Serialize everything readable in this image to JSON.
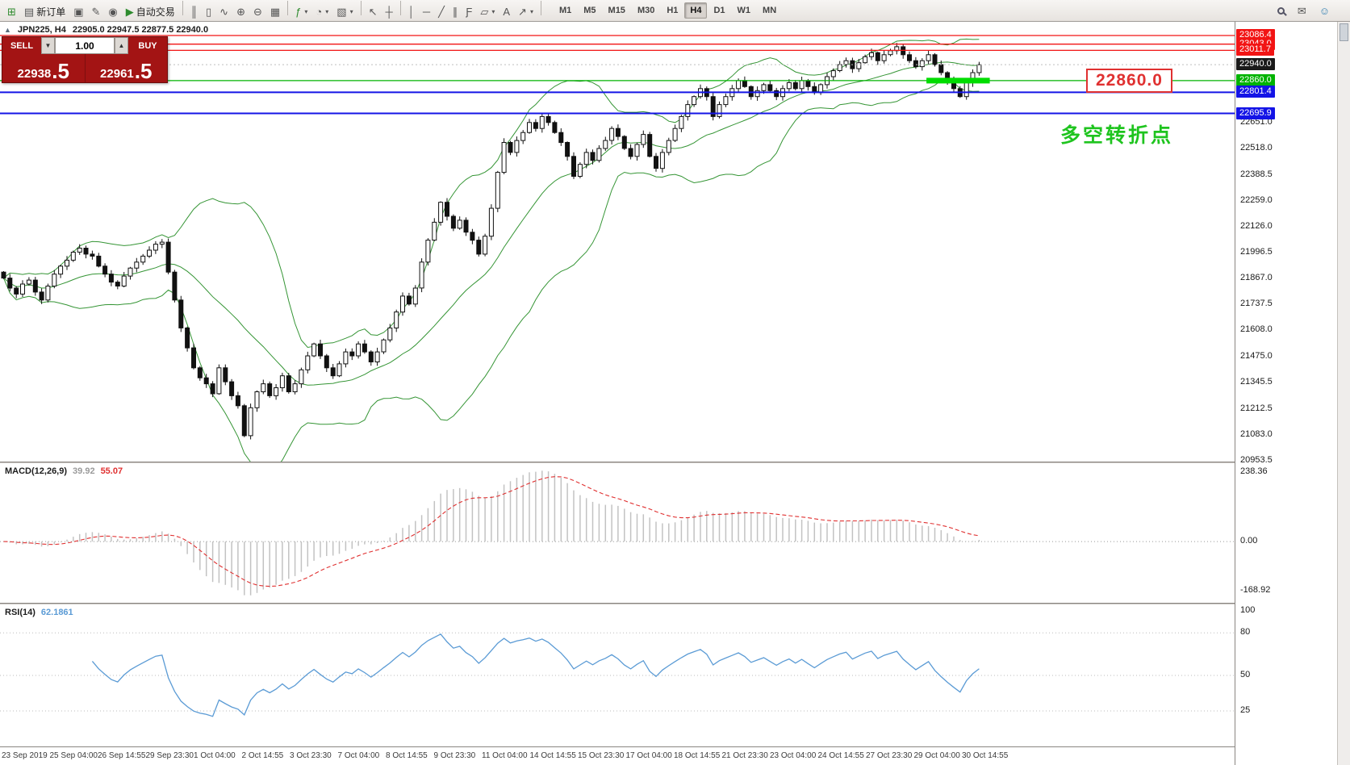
{
  "toolbar": {
    "caret_glyph": "▾",
    "items": [
      {
        "name": "new-chart",
        "glyph": "⊞",
        "color": "#2e8b2e"
      },
      {
        "name": "new-order",
        "glyph": "▤",
        "label": "新订单"
      },
      {
        "name": "chart-profiles",
        "glyph": "▣"
      },
      {
        "name": "metaeditor",
        "glyph": "✎"
      },
      {
        "name": "alerts",
        "glyph": "◉"
      },
      {
        "name": "autotrading",
        "glyph": "▶",
        "label": "自动交易",
        "color": "#2e8b2e"
      },
      {
        "sep": true
      },
      {
        "name": "bar-chart",
        "glyph": "║"
      },
      {
        "name": "candlestick-chart",
        "glyph": "▯"
      },
      {
        "name": "line-chart",
        "glyph": "∿"
      },
      {
        "name": "zoom-in",
        "glyph": "⊕"
      },
      {
        "name": "zoom-out",
        "glyph": "⊖"
      },
      {
        "name": "tile-windows",
        "glyph": "▦"
      },
      {
        "sep": true
      },
      {
        "name": "indicators",
        "glyph": "ƒ",
        "color": "#2e8b2e",
        "caret": true
      },
      {
        "name": "periods",
        "glyph": "◔",
        "caret": true
      },
      {
        "name": "templates",
        "glyph": "▧",
        "caret": true
      },
      {
        "sep": true
      },
      {
        "name": "cursor",
        "glyph": "↖"
      },
      {
        "name": "crosshair",
        "glyph": "┼"
      },
      {
        "sep": true
      },
      {
        "name": "vertical-line",
        "glyph": "│"
      },
      {
        "name": "horizontal-line",
        "glyph": "─"
      },
      {
        "name": "trendline",
        "glyph": "╱"
      },
      {
        "name": "equidistant-channel",
        "glyph": "∥"
      },
      {
        "name": "fibonacci",
        "glyph": "Ƒ"
      },
      {
        "name": "shapes",
        "glyph": "▱",
        "caret": true
      },
      {
        "name": "text-label",
        "glyph": "A"
      },
      {
        "name": "arrow-objects",
        "glyph": "↗",
        "caret": true
      },
      {
        "sep": true
      }
    ],
    "timeframes": [
      {
        "label": "M1"
      },
      {
        "label": "M5"
      },
      {
        "label": "M15"
      },
      {
        "label": "M30"
      },
      {
        "label": "H1"
      },
      {
        "label": "H4",
        "active": true
      },
      {
        "label": "D1"
      },
      {
        "label": "W1"
      },
      {
        "label": "MN"
      }
    ],
    "right_icons": [
      {
        "name": "search",
        "css": "magnifier"
      },
      {
        "name": "mail",
        "glyph": "✉"
      },
      {
        "name": "community",
        "glyph": "☺",
        "color": "#2e7db0"
      }
    ]
  },
  "chart_header": {
    "toggle_icon": "▲",
    "symbol_period": "JPN225, H4",
    "ohlc": "22905.0 22947.5 22877.5 22940.0"
  },
  "one_click": {
    "sell_label": "SELL",
    "buy_label": "BUY",
    "volume": "1.00",
    "vol_down_glyph": "▼",
    "vol_up_glyph": "▲",
    "sell_price_main": "22938",
    "sell_price_big": ".5",
    "buy_price_main": "22961",
    "buy_price_big": ".5"
  },
  "annotations": {
    "price_box_label": "22860.0",
    "price_box_color": "#e03131",
    "note_text": "多空转折点",
    "note_color": "#1fc41f",
    "highlight_from_candle": 146,
    "highlight_to_candle": 156,
    "highlight_value": 22860,
    "highlight_color": "#00dd00"
  },
  "levels": [
    {
      "value": 23086.4,
      "label": "23086.4",
      "color": "#f21414",
      "line": true
    },
    {
      "value": 23043.0,
      "label": "23043.0",
      "color": "#f21414",
      "line": true
    },
    {
      "value": 23011.7,
      "label": "23011.7",
      "color": "#f21414",
      "line": true
    },
    {
      "value": 22940.0,
      "label": "22940.0",
      "color": "#1a1a1a",
      "line": false,
      "dashed": true
    },
    {
      "value": 22860.0,
      "label": "22860.0",
      "color": "#00b300",
      "line": true
    },
    {
      "value": 22801.4,
      "label": "22801.4",
      "color": "#1414e6",
      "line": true,
      "thick": true
    },
    {
      "value": 22695.9,
      "label": "22695.9",
      "color": "#1414e6",
      "line": true,
      "thick": true
    }
  ],
  "price_ticks": [
    "22651.0",
    "22518.0",
    "22388.5",
    "22259.0",
    "22126.0",
    "21996.5",
    "21867.0",
    "21737.5",
    "21608.0",
    "21475.0",
    "21345.5",
    "21212.5",
    "21083.0",
    "20953.5"
  ],
  "time_labels": [
    "23 Sep 2019",
    "25 Sep 04:00",
    "26 Sep 14:55",
    "29 Sep 23:30",
    "1 Oct 04:00",
    "2 Oct 14:55",
    "3 Oct 23:30",
    "7 Oct 04:00",
    "8 Oct 14:55",
    "9 Oct 23:30",
    "11 Oct 04:00",
    "14 Oct 14:55",
    "15 Oct 23:30",
    "17 Oct 04:00",
    "18 Oct 14:55",
    "21 Oct 23:30",
    "23 Oct 04:00",
    "24 Oct 14:55",
    "27 Oct 23:30",
    "29 Oct 04:00",
    "30 Oct 14:55"
  ],
  "macd_panel": {
    "name": "MACD(12,26,9)",
    "value_main": "39.92",
    "value_signal": "55.07",
    "axis_labels": [
      "238.36",
      "0.00",
      "-168.92"
    ]
  },
  "rsi_panel": {
    "name": "RSI(14)",
    "value": "62.1861",
    "axis_labels": [
      "100",
      "80",
      "50",
      "25"
    ],
    "levels": [
      80,
      50,
      25
    ]
  },
  "chart_data": {
    "type": "candlestick",
    "symbol": "JPN225",
    "period": "H4",
    "ohlc_line": {
      "open": "22905.0",
      "high": "22947.5",
      "low": "22877.5",
      "close": "22940.0"
    },
    "visible_range_prices": [
      20950,
      23155
    ],
    "indicators": [
      {
        "name": "Bollinger Bands",
        "color": "#359535"
      },
      {
        "name": "MACD(12,26,9)",
        "histogram_color": "#c2c2c2",
        "signal_color": "#e03131"
      },
      {
        "name": "RSI(14)",
        "color": "#5b9bd5"
      }
    ],
    "closes": [
      21870,
      21820,
      21790,
      21840,
      21860,
      21800,
      21760,
      21830,
      21890,
      21930,
      21960,
      22000,
      22020,
      21990,
      21980,
      21930,
      21890,
      21850,
      21830,
      21880,
      21920,
      21950,
      21980,
      22010,
      22040,
      22050,
      21900,
      21760,
      21620,
      21520,
      21420,
      21370,
      21340,
      21290,
      21420,
      21350,
      21280,
      21230,
      21080,
      21220,
      21300,
      21340,
      21280,
      21320,
      21380,
      21300,
      21340,
      21410,
      21480,
      21540,
      21480,
      21420,
      21380,
      21440,
      21500,
      21480,
      21540,
      21500,
      21450,
      21500,
      21560,
      21620,
      21700,
      21780,
      21740,
      21820,
      21950,
      22060,
      22150,
      22250,
      22180,
      22120,
      22160,
      22100,
      22060,
      21990,
      22080,
      22220,
      22400,
      22550,
      22500,
      22560,
      22600,
      22650,
      22620,
      22680,
      22650,
      22600,
      22550,
      22480,
      22380,
      22440,
      22500,
      22460,
      22520,
      22560,
      22620,
      22580,
      22520,
      22480,
      22540,
      22590,
      22480,
      22420,
      22500,
      22560,
      22620,
      22680,
      22740,
      22780,
      22820,
      22780,
      22680,
      22740,
      22780,
      22820,
      22860,
      22830,
      22780,
      22810,
      22840,
      22810,
      22780,
      22820,
      22850,
      22820,
      22860,
      22830,
      22800,
      22840,
      22880,
      22910,
      22940,
      22960,
      22920,
      22950,
      22980,
      23000,
      22960,
      22990,
      23010,
      23030,
      22990,
      22960,
      22930,
      22960,
      22990,
      22940,
      22900,
      22860,
      22820,
      22780,
      22850,
      22900,
      22940
    ]
  }
}
